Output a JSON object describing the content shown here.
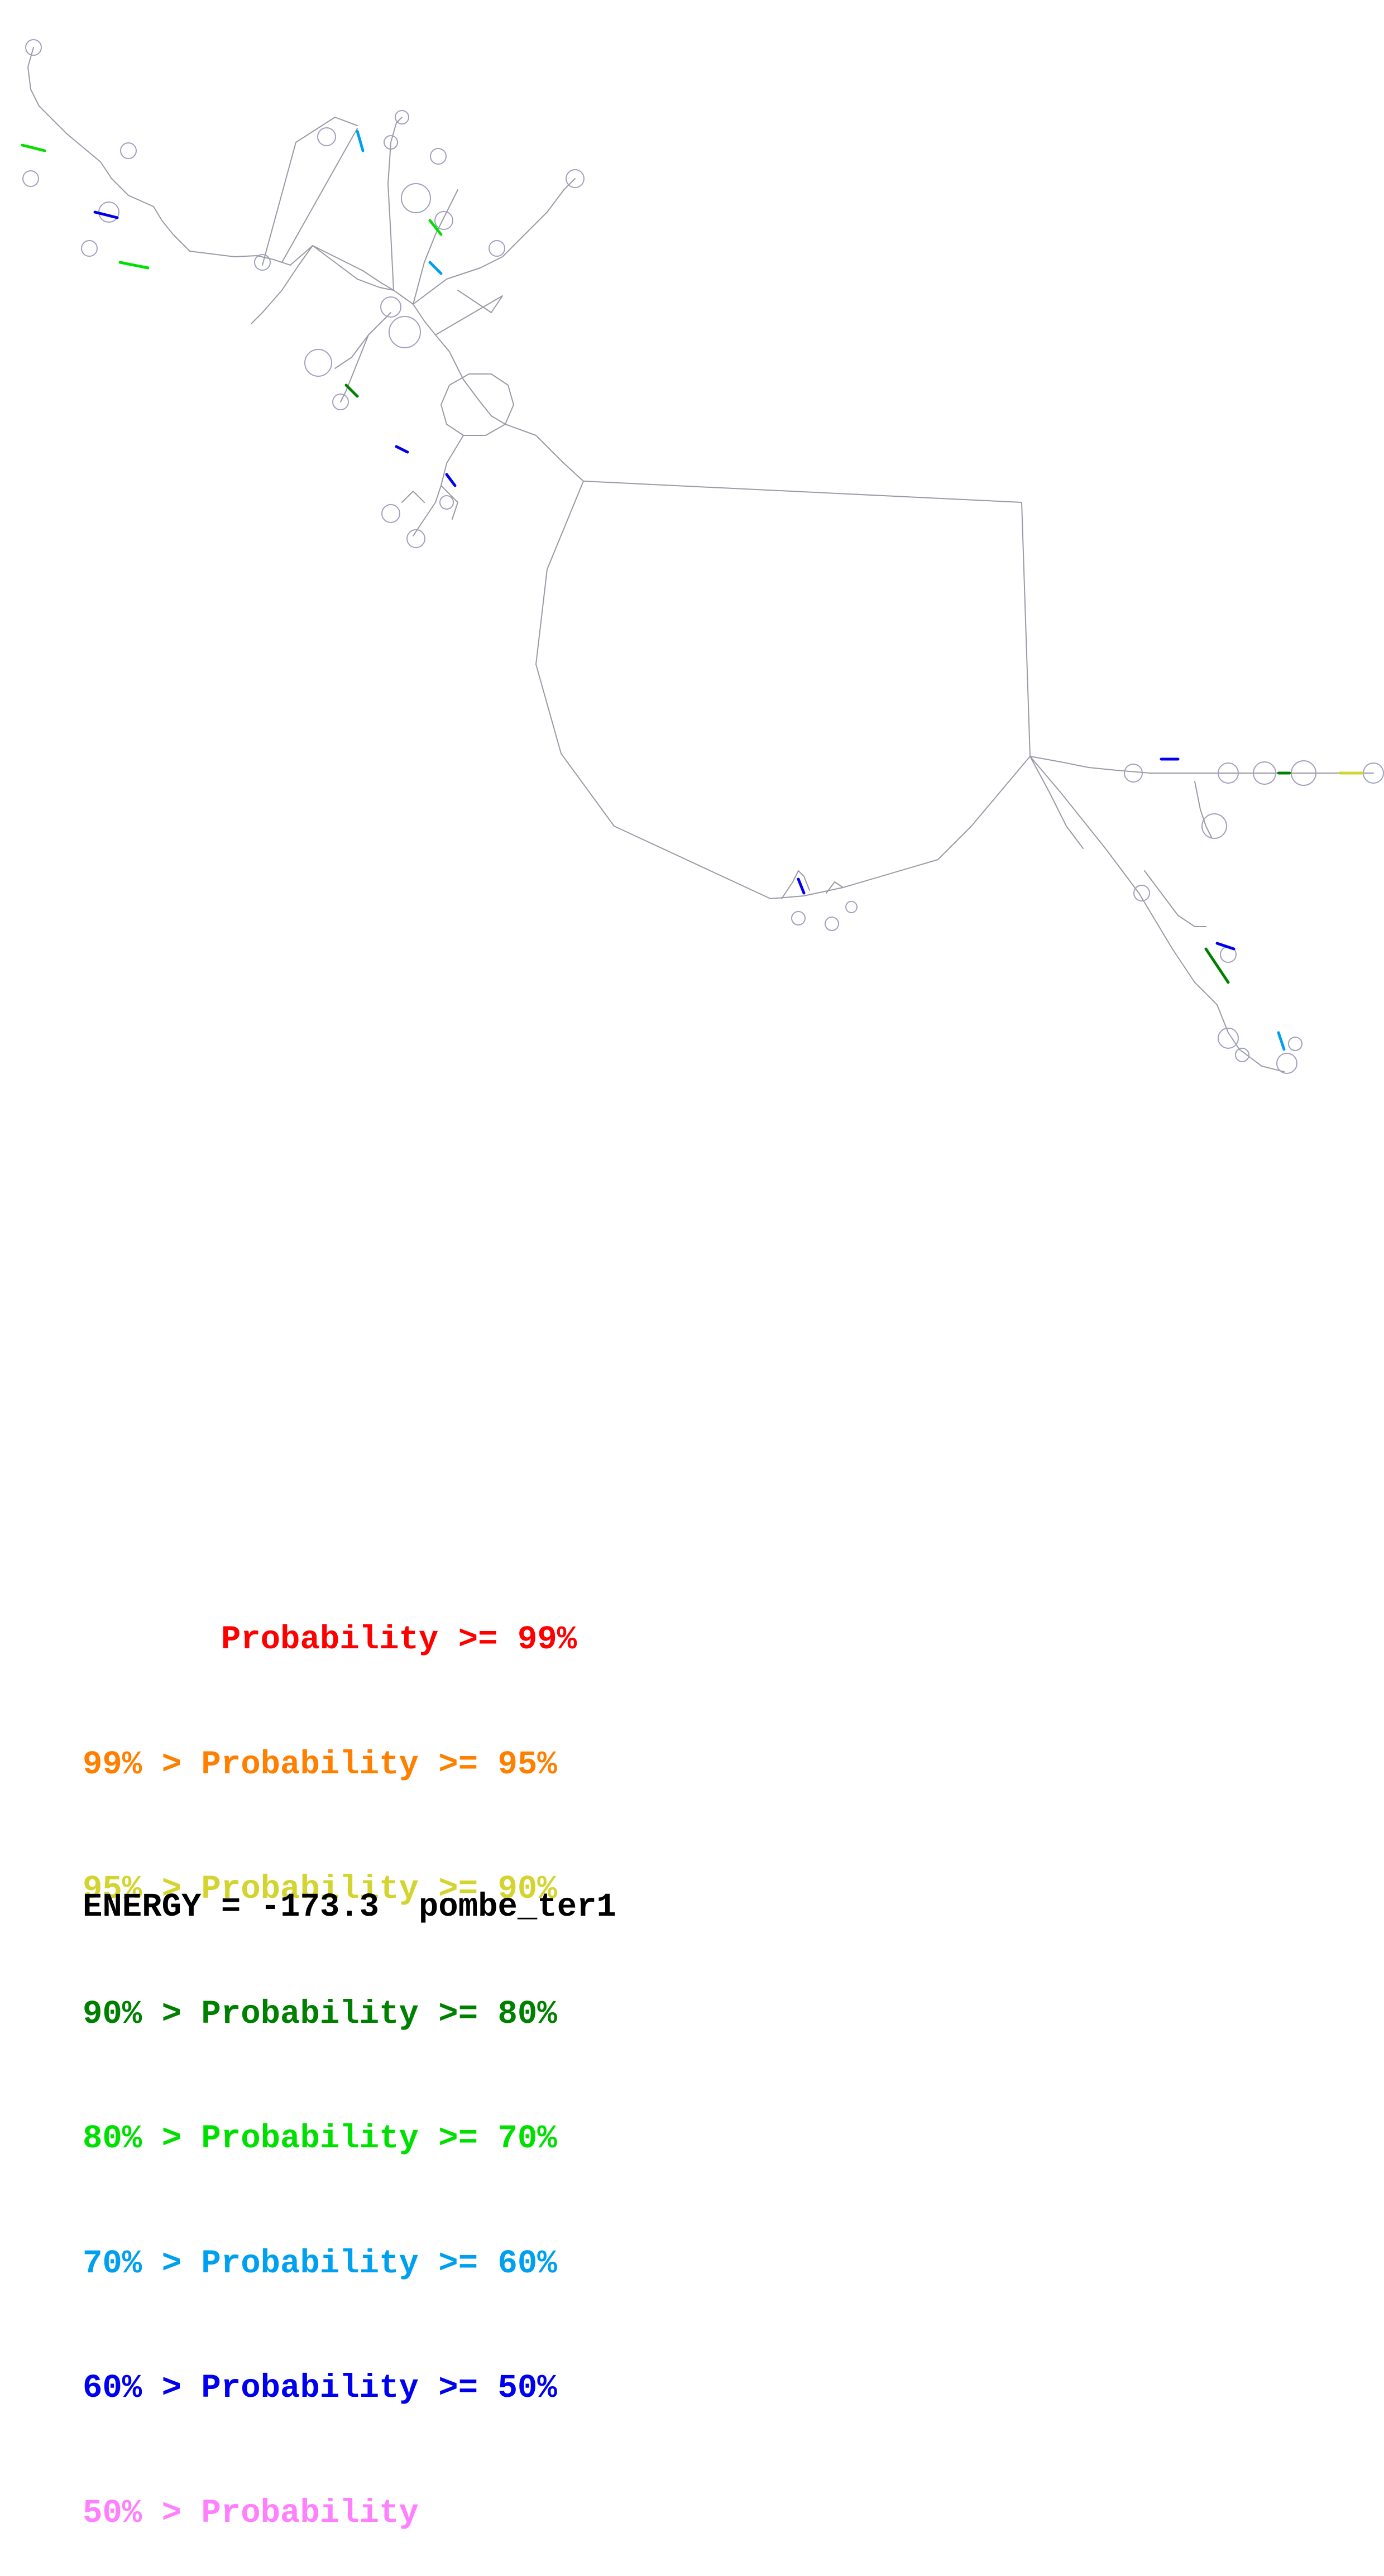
{
  "legend": [
    {
      "text": "       Probability >= 99%",
      "color": "#ff0000"
    },
    {
      "text": "99% > Probability >= 95%",
      "color": "#ff8000"
    },
    {
      "text": "95% > Probability >= 90%",
      "color": "#d4d430"
    },
    {
      "text": "90% > Probability >= 80%",
      "color": "#008000"
    },
    {
      "text": "80% > Probability >= 70%",
      "color": "#00e000"
    },
    {
      "text": "70% > Probability >= 60%",
      "color": "#00a0f0"
    },
    {
      "text": "60% > Probability >= 50%",
      "color": "#0000f0"
    },
    {
      "text": "50% > Probability",
      "color": "#ff80ff"
    }
  ],
  "energy_label": "ENERGY = -173.3",
  "sequence_name": "pombe_ter1"
}
